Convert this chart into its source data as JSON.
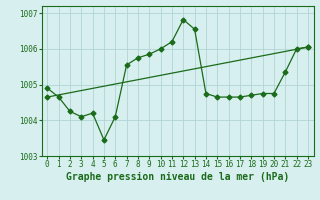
{
  "title": "Graphe pression niveau de la mer (hPa)",
  "background_color": "#d8efef",
  "grid_color": "#b0d4d4",
  "line_color": "#1a6b1a",
  "xlim": [
    -0.5,
    23.5
  ],
  "ylim": [
    1003,
    1007.2
  ],
  "yticks": [
    1003,
    1004,
    1005,
    1006,
    1007
  ],
  "xticks": [
    0,
    1,
    2,
    3,
    4,
    5,
    6,
    7,
    8,
    9,
    10,
    11,
    12,
    13,
    14,
    15,
    16,
    17,
    18,
    19,
    20,
    21,
    22,
    23
  ],
  "line1_x": [
    0,
    1,
    2,
    3,
    4,
    5,
    6,
    7,
    8,
    9,
    10,
    11,
    12,
    13,
    14,
    15,
    16,
    17,
    18,
    19,
    20,
    21,
    22,
    23
  ],
  "line1_y": [
    1004.9,
    1004.65,
    1004.25,
    1004.1,
    1004.2,
    1003.45,
    1004.1,
    1005.55,
    1005.75,
    1005.85,
    1006.0,
    1006.2,
    1006.82,
    1006.55,
    1004.75,
    1004.65,
    1004.65,
    1004.65,
    1004.7,
    1004.75,
    1004.75,
    1005.35,
    1006.0,
    1006.05
  ],
  "line2_x": [
    0,
    23
  ],
  "line2_y": [
    1004.65,
    1006.05
  ],
  "marker_size": 2.5,
  "title_fontsize": 7,
  "tick_fontsize": 5.5
}
